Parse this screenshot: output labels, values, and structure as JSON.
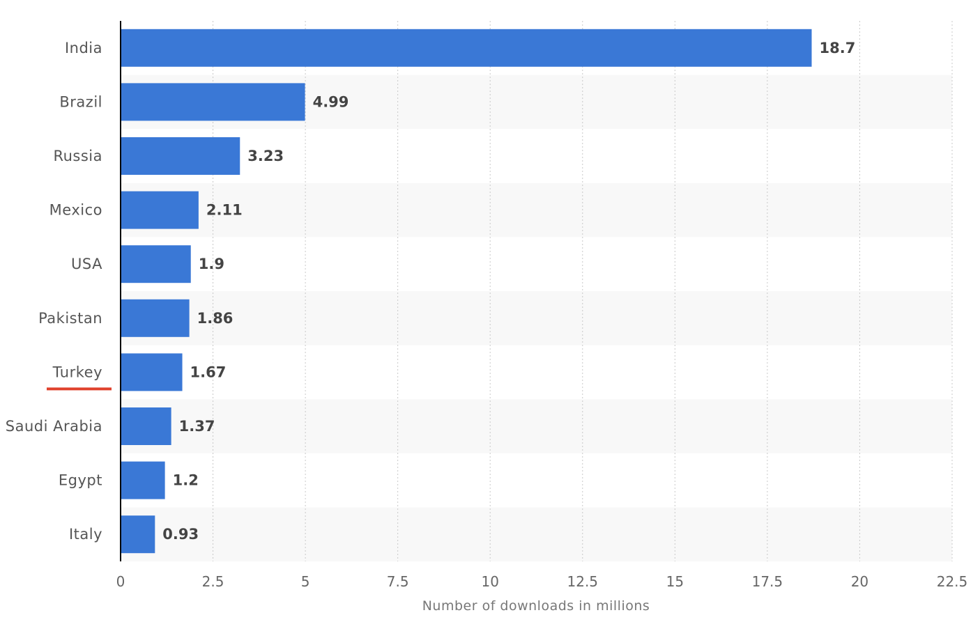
{
  "chart_data": {
    "type": "bar",
    "orientation": "horizontal",
    "categories": [
      "India",
      "Brazil",
      "Russia",
      "Mexico",
      "USA",
      "Pakistan",
      "Turkey",
      "Saudi Arabia",
      "Egypt",
      "Italy"
    ],
    "values": [
      18.7,
      4.99,
      3.23,
      2.11,
      1.9,
      1.86,
      1.67,
      1.37,
      1.2,
      0.93
    ],
    "value_labels": [
      "18.7",
      "4.99",
      "3.23",
      "2.11",
      "1.9",
      "1.86",
      "1.67",
      "1.37",
      "1.2",
      "0.93"
    ],
    "xlabel": "Number of downloads in millions",
    "ylabel": "",
    "title": "",
    "xlim": [
      0,
      22.5
    ],
    "xticks": [
      0,
      2.5,
      5,
      7.5,
      10,
      12.5,
      15,
      17.5,
      20,
      22.5
    ],
    "xtick_labels": [
      "0",
      "2.5",
      "5",
      "7.5",
      "10",
      "12.5",
      "15",
      "17.5",
      "20",
      "22.5"
    ],
    "highlighted_category": "Turkey",
    "grid": true,
    "legend": "none"
  },
  "colors": {
    "bar": "#3a78d6",
    "highlight": "#e0412c",
    "band": "#f8f8f8"
  }
}
